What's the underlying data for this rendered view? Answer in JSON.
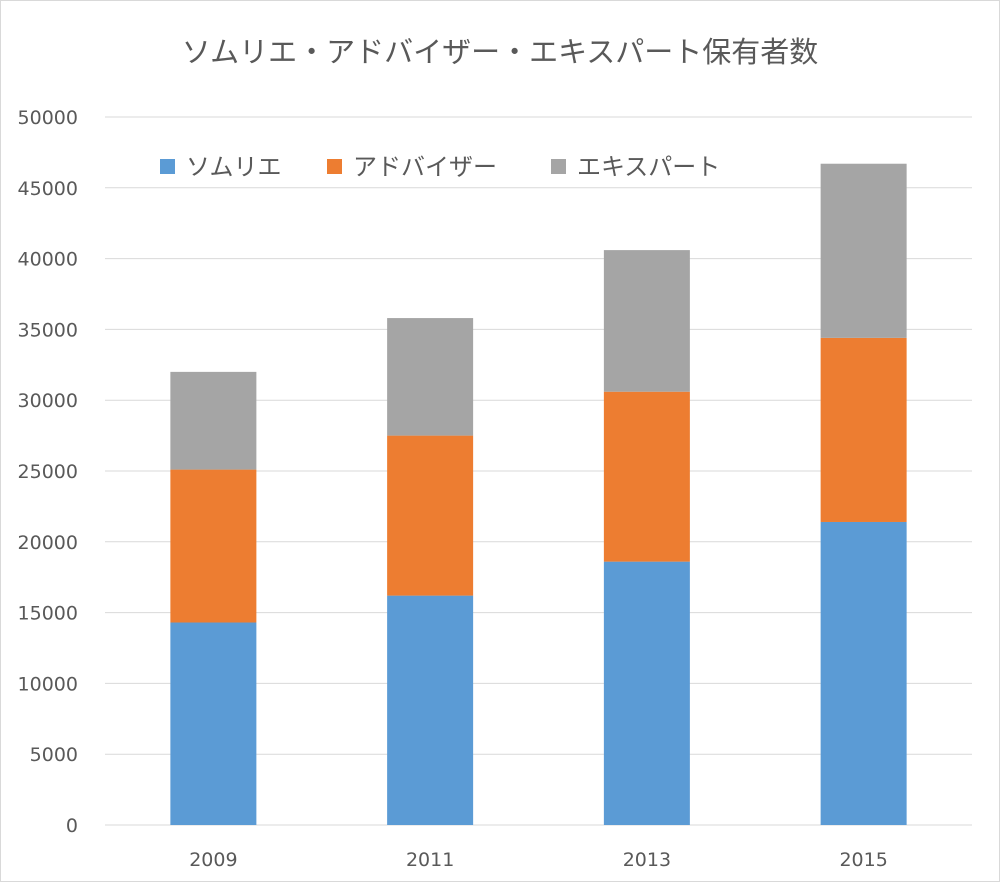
{
  "chart_data": {
    "type": "bar",
    "stacked": true,
    "title": "ソムリエ・アドバイザー・エキスパート保有者数",
    "categories": [
      "2009",
      "2011",
      "2013",
      "2015"
    ],
    "series": [
      {
        "name": "ソムリエ",
        "color": "#5b9bd5",
        "values": [
          14300,
          16200,
          18600,
          21400
        ]
      },
      {
        "name": "アドバイザー",
        "color": "#ed7d31",
        "values": [
          10800,
          11300,
          12000,
          13000
        ]
      },
      {
        "name": "エキスパート",
        "color": "#a5a5a5",
        "values": [
          6900,
          8300,
          10000,
          12300
        ]
      }
    ],
    "ylim": [
      0,
      50000
    ],
    "yticks": [
      "0",
      "5000",
      "10000",
      "15000",
      "20000",
      "25000",
      "30000",
      "35000",
      "40000",
      "45000",
      "50000"
    ],
    "xlabel": "",
    "ylabel": "",
    "grid": true,
    "legend_position": "top-left"
  }
}
